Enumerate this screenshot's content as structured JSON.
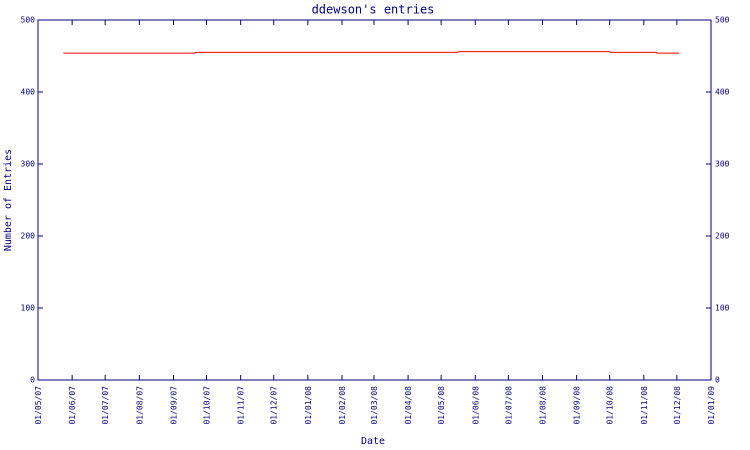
{
  "chart_data": {
    "type": "line",
    "title": "ddewson's entries",
    "x_label": "Date",
    "y_label": "Number of Entries",
    "x": [
      "2007-05-24",
      "2007-09-20",
      "2007-09-21",
      "2008-05-16",
      "2008-05-17",
      "2008-10-01",
      "2008-10-02",
      "2008-11-12",
      "2008-11-13",
      "2008-12-03"
    ],
    "series": [
      {
        "name": "entries",
        "color": "#ff0000",
        "values": [
          454,
          454,
          455,
          455,
          456,
          456,
          455,
          455,
          454,
          454
        ]
      }
    ],
    "xlim": [
      "2007-05-01",
      "2009-01-01"
    ],
    "xticks": [
      {
        "value": "2007-05-01",
        "label": "01/05/07"
      },
      {
        "value": "2007-06-01",
        "label": "01/06/07"
      },
      {
        "value": "2007-07-01",
        "label": "01/07/07"
      },
      {
        "value": "2007-08-01",
        "label": "01/08/07"
      },
      {
        "value": "2007-09-01",
        "label": "01/09/07"
      },
      {
        "value": "2007-10-01",
        "label": "01/10/07"
      },
      {
        "value": "2007-11-01",
        "label": "01/11/07"
      },
      {
        "value": "2007-12-01",
        "label": "01/12/07"
      },
      {
        "value": "2008-01-01",
        "label": "01/01/08"
      },
      {
        "value": "2008-02-01",
        "label": "01/02/08"
      },
      {
        "value": "2008-03-01",
        "label": "01/03/08"
      },
      {
        "value": "2008-04-01",
        "label": "01/04/08"
      },
      {
        "value": "2008-05-01",
        "label": "01/05/08"
      },
      {
        "value": "2008-06-01",
        "label": "01/06/08"
      },
      {
        "value": "2008-07-01",
        "label": "01/07/08"
      },
      {
        "value": "2008-08-01",
        "label": "01/08/08"
      },
      {
        "value": "2008-09-01",
        "label": "01/09/08"
      },
      {
        "value": "2008-10-01",
        "label": "01/10/08"
      },
      {
        "value": "2008-11-01",
        "label": "01/11/08"
      },
      {
        "value": "2008-12-01",
        "label": "01/12/08"
      },
      {
        "value": "2009-01-01",
        "label": "01/01/09"
      }
    ],
    "ylim": [
      0,
      500
    ],
    "yticks": [
      0,
      100,
      200,
      300,
      400,
      500
    ],
    "y2lim": [
      0,
      500
    ],
    "y2ticks": [
      0,
      100,
      200,
      300,
      400,
      500
    ],
    "axis_color": "#000080",
    "grid": false
  }
}
